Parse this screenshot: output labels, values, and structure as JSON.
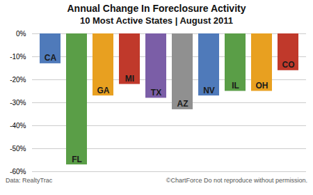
{
  "chart_data": {
    "type": "bar",
    "title": "Annual Change In Foreclosure Activity",
    "subtitle": "10 Most Active States | August 2011",
    "categories": [
      "CA",
      "FL",
      "GA",
      "MI",
      "TX",
      "AZ",
      "NV",
      "IL",
      "OH",
      "CO"
    ],
    "values": [
      -13,
      -57,
      -27,
      -22,
      -28,
      -33,
      -27,
      -25,
      -25,
      -16
    ],
    "colors": [
      "#4f7aba",
      "#5a9e47",
      "#e8a020",
      "#c0392b",
      "#7b5ea7",
      "#909090",
      "#4f7aba",
      "#5a9e47",
      "#e8a020",
      "#c0392b"
    ],
    "ylim": [
      -60,
      0
    ],
    "yticks": [
      {
        "value": 0,
        "label": "0%"
      },
      {
        "value": -10,
        "label": "-10%"
      },
      {
        "value": -20,
        "label": "-20%"
      },
      {
        "value": -30,
        "label": "-30%"
      },
      {
        "value": -40,
        "label": "-40%"
      },
      {
        "value": -50,
        "label": "-50%"
      },
      {
        "value": -60,
        "label": "-60%"
      }
    ],
    "grid": true,
    "tick_labels": "y",
    "annotations": [
      "Data: RealtyTrac",
      "©ChartForce  Do not reproduce without permission."
    ]
  }
}
